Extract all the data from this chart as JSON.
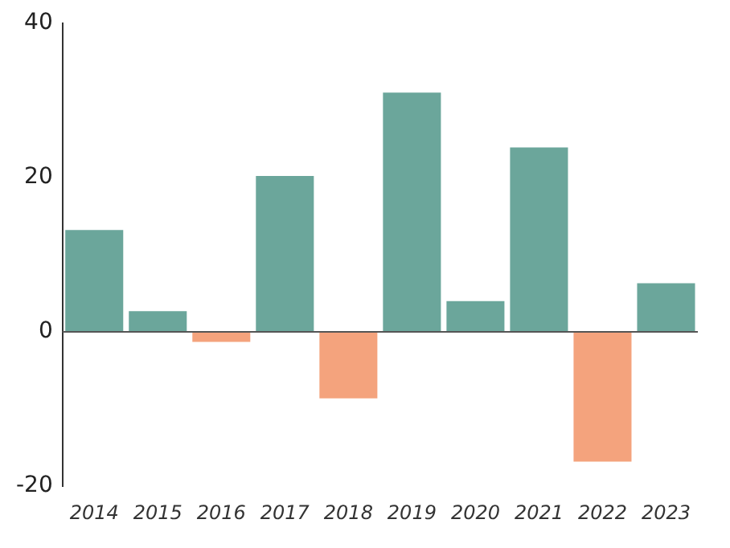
{
  "chart_data": {
    "type": "bar",
    "categories": [
      "2014",
      "2015",
      "2016",
      "2017",
      "2018",
      "2019",
      "2020",
      "2021",
      "2022",
      "2023"
    ],
    "values": [
      13.2,
      2.7,
      -1.3,
      20.2,
      -8.6,
      31,
      4,
      23.9,
      -16.8,
      6.3
    ],
    "colors": [
      "#6ba69b",
      "#6ba69b",
      "#f4a37d",
      "#6ba69b",
      "#f4a37d",
      "#6ba69b",
      "#6ba69b",
      "#6ba69b",
      "#f4a37d",
      "#6ba69b"
    ],
    "ref_lines": [
      {
        "axis": "y",
        "value": 0,
        "color": "#555555"
      }
    ],
    "ylim": [
      -20,
      40
    ],
    "yticks": [
      -20,
      0,
      20,
      40
    ],
    "grid": false,
    "legend": false
  }
}
